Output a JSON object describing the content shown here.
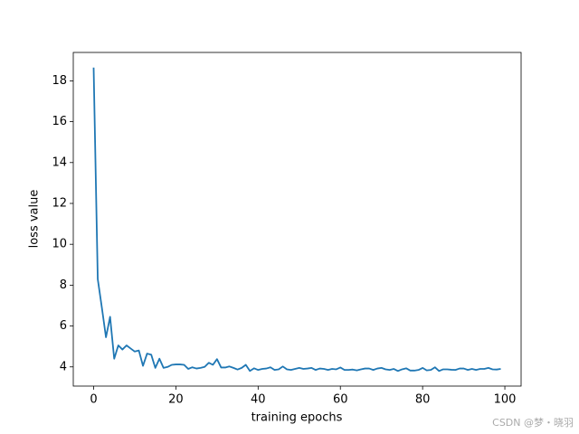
{
  "chart_data": {
    "type": "line",
    "xlabel": "training epochs",
    "ylabel": "loss value",
    "watermark": "CSDN @梦・晓羽",
    "color": "#1f77b4",
    "x": [
      0,
      1,
      2,
      3,
      4,
      5,
      6,
      7,
      8,
      9,
      10,
      11,
      12,
      13,
      14,
      15,
      16,
      17,
      18,
      19,
      20,
      21,
      22,
      23,
      24,
      25,
      26,
      27,
      28,
      29,
      30,
      31,
      32,
      33,
      34,
      35,
      36,
      37,
      38,
      39,
      40,
      41,
      42,
      43,
      44,
      45,
      46,
      47,
      48,
      49,
      50,
      51,
      52,
      53,
      54,
      55,
      56,
      57,
      58,
      59,
      60,
      61,
      62,
      63,
      64,
      65,
      66,
      67,
      68,
      69,
      70,
      71,
      72,
      73,
      74,
      75,
      76,
      77,
      78,
      79,
      80,
      81,
      82,
      83,
      84,
      85,
      86,
      87,
      88,
      89,
      90,
      91,
      92,
      93,
      94,
      95,
      96,
      97,
      98,
      99
    ],
    "values": [
      18.65,
      8.3,
      6.9,
      5.45,
      6.45,
      4.4,
      5.05,
      4.85,
      5.05,
      4.9,
      4.75,
      4.8,
      4.05,
      4.65,
      4.6,
      3.95,
      4.4,
      3.95,
      4.0,
      4.1,
      4.12,
      4.12,
      4.1,
      3.9,
      3.98,
      3.92,
      3.95,
      4.0,
      4.2,
      4.1,
      4.38,
      3.97,
      3.97,
      4.02,
      3.95,
      3.87,
      3.95,
      4.1,
      3.8,
      3.93,
      3.85,
      3.9,
      3.92,
      3.98,
      3.85,
      3.88,
      4.02,
      3.88,
      3.85,
      3.9,
      3.95,
      3.9,
      3.92,
      3.95,
      3.85,
      3.92,
      3.9,
      3.85,
      3.9,
      3.88,
      3.97,
      3.85,
      3.85,
      3.87,
      3.83,
      3.88,
      3.92,
      3.92,
      3.85,
      3.92,
      3.95,
      3.88,
      3.85,
      3.9,
      3.8,
      3.88,
      3.93,
      3.82,
      3.82,
      3.85,
      3.95,
      3.83,
      3.85,
      3.98,
      3.8,
      3.88,
      3.88,
      3.86,
      3.85,
      3.92,
      3.92,
      3.85,
      3.9,
      3.85,
      3.9,
      3.9,
      3.95,
      3.88,
      3.87,
      3.9
    ],
    "xlim": [
      -4.95,
      103.95
    ],
    "ylim": [
      3.06,
      19.39
    ],
    "xticks": [
      0,
      20,
      40,
      60,
      80,
      100
    ],
    "yticks": [
      4,
      6,
      8,
      10,
      12,
      14,
      16,
      18
    ]
  }
}
